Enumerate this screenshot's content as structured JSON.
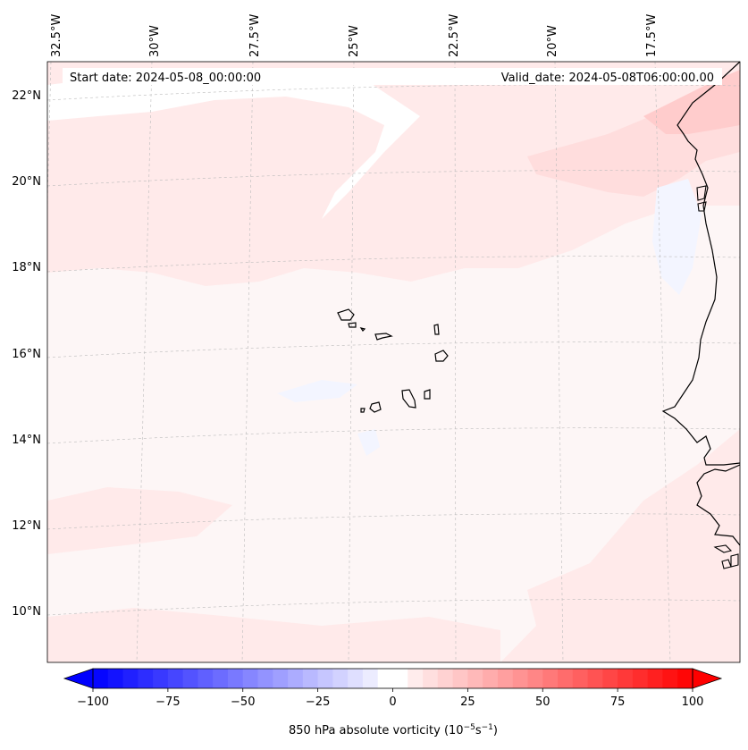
{
  "header": {
    "start_date": "Start date: 2024-05-08_00:00:00",
    "valid_date": "Valid_date: 2024-05-08T06:00:00.00"
  },
  "map": {
    "lon_labels": [
      "32.5°W",
      "30°W",
      "27.5°W",
      "25°W",
      "22.5°W",
      "20°W",
      "17.5°W"
    ],
    "lat_labels": [
      "22°N",
      "20°N",
      "18°N",
      "16°N",
      "14°N",
      "12°N",
      "10°N"
    ],
    "colors": {
      "base": "#fdf6f6",
      "light_pink": "#ffeaea",
      "pink": "#ffdddd",
      "deep_pink": "#ffcccc",
      "white": "#ffffff",
      "light_blue": "#f3f5ff",
      "coast": "#000000",
      "grid": "#bbbbbb"
    },
    "field_name": "850 hPa absolute vorticity"
  },
  "colorbar": {
    "min": -100,
    "max": 100,
    "step": 5,
    "ticks": [
      "−100",
      "−75",
      "−50",
      "−25",
      "0",
      "25",
      "50",
      "75",
      "100"
    ],
    "label": "850 hPa absolute vorticity (10",
    "label_exp1": "−5",
    "label_mid": "s",
    "label_exp2": "−1",
    "label_end": ")",
    "neg_color": "#0000ff",
    "pos_color": "#ff0000",
    "center_color": "#ffffff"
  }
}
